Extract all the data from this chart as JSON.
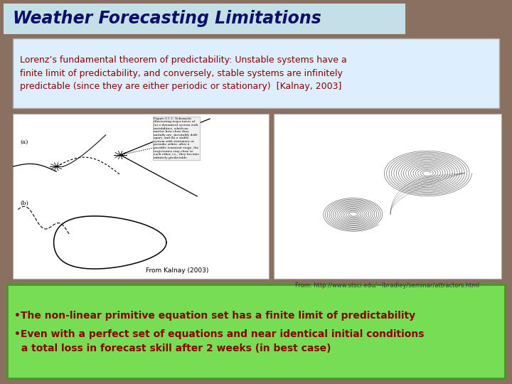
{
  "title": "Weather Forecasting Limitations",
  "title_color": "#0d0d6b",
  "title_bg_color": "#c5dfe8",
  "quote_text": "Lorenz’s fundamental theorem of predictability: Unstable systems have a\nfinite limit of predictability, and conversely, stable systems are infinitely\npredictable (since they are either periodic or stationary)  [Kalnay, 2003]",
  "quote_text_color": "#8b0000",
  "quote_bg_color": "#ddeeff",
  "quote_border_color": "#aaaaaa",
  "kalnay_caption": "From Kalnay (2003)",
  "url_caption": "From: http://www.stsci.edu/~lbradley/seminar/attractors.html",
  "bullet1": "•The non-linear primitive equation set has a finite limit of predictability",
  "bullet2": "•Even with a perfect set of equations and near identical initial conditions\n  a total loss in forecast skill after 2 weeks (in best case)",
  "bullet_text_color": "#8b0000",
  "bullet_bg_color": "#77dd55",
  "bg_color": "#8a7060",
  "fig_width": 7.2,
  "fig_height": 5.4
}
